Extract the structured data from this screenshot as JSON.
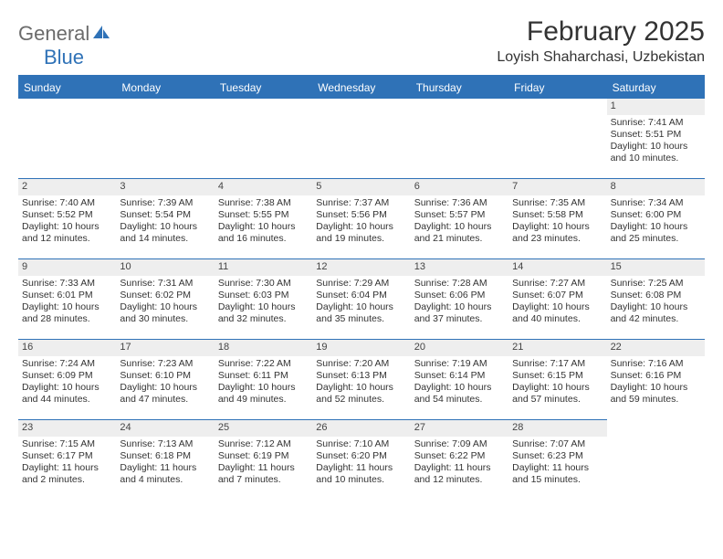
{
  "brand": {
    "text1": "General",
    "text2": "Blue",
    "icon_color": "#2f72b7"
  },
  "header": {
    "title": "February 2025",
    "subtitle": "Loyish Shaharchasi, Uzbekistan"
  },
  "colors": {
    "header_bar": "#2f72b7",
    "daynum_bg": "#eeeeee",
    "text": "#333333",
    "logo_gray": "#6b6b6b"
  },
  "day_names": [
    "Sunday",
    "Monday",
    "Tuesday",
    "Wednesday",
    "Thursday",
    "Friday",
    "Saturday"
  ],
  "leading_empty": 6,
  "days": [
    {
      "n": 1,
      "sunrise": "7:41 AM",
      "sunset": "5:51 PM",
      "daylight": "10 hours and 10 minutes."
    },
    {
      "n": 2,
      "sunrise": "7:40 AM",
      "sunset": "5:52 PM",
      "daylight": "10 hours and 12 minutes."
    },
    {
      "n": 3,
      "sunrise": "7:39 AM",
      "sunset": "5:54 PM",
      "daylight": "10 hours and 14 minutes."
    },
    {
      "n": 4,
      "sunrise": "7:38 AM",
      "sunset": "5:55 PM",
      "daylight": "10 hours and 16 minutes."
    },
    {
      "n": 5,
      "sunrise": "7:37 AM",
      "sunset": "5:56 PM",
      "daylight": "10 hours and 19 minutes."
    },
    {
      "n": 6,
      "sunrise": "7:36 AM",
      "sunset": "5:57 PM",
      "daylight": "10 hours and 21 minutes."
    },
    {
      "n": 7,
      "sunrise": "7:35 AM",
      "sunset": "5:58 PM",
      "daylight": "10 hours and 23 minutes."
    },
    {
      "n": 8,
      "sunrise": "7:34 AM",
      "sunset": "6:00 PM",
      "daylight": "10 hours and 25 minutes."
    },
    {
      "n": 9,
      "sunrise": "7:33 AM",
      "sunset": "6:01 PM",
      "daylight": "10 hours and 28 minutes."
    },
    {
      "n": 10,
      "sunrise": "7:31 AM",
      "sunset": "6:02 PM",
      "daylight": "10 hours and 30 minutes."
    },
    {
      "n": 11,
      "sunrise": "7:30 AM",
      "sunset": "6:03 PM",
      "daylight": "10 hours and 32 minutes."
    },
    {
      "n": 12,
      "sunrise": "7:29 AM",
      "sunset": "6:04 PM",
      "daylight": "10 hours and 35 minutes."
    },
    {
      "n": 13,
      "sunrise": "7:28 AM",
      "sunset": "6:06 PM",
      "daylight": "10 hours and 37 minutes."
    },
    {
      "n": 14,
      "sunrise": "7:27 AM",
      "sunset": "6:07 PM",
      "daylight": "10 hours and 40 minutes."
    },
    {
      "n": 15,
      "sunrise": "7:25 AM",
      "sunset": "6:08 PM",
      "daylight": "10 hours and 42 minutes."
    },
    {
      "n": 16,
      "sunrise": "7:24 AM",
      "sunset": "6:09 PM",
      "daylight": "10 hours and 44 minutes."
    },
    {
      "n": 17,
      "sunrise": "7:23 AM",
      "sunset": "6:10 PM",
      "daylight": "10 hours and 47 minutes."
    },
    {
      "n": 18,
      "sunrise": "7:22 AM",
      "sunset": "6:11 PM",
      "daylight": "10 hours and 49 minutes."
    },
    {
      "n": 19,
      "sunrise": "7:20 AM",
      "sunset": "6:13 PM",
      "daylight": "10 hours and 52 minutes."
    },
    {
      "n": 20,
      "sunrise": "7:19 AM",
      "sunset": "6:14 PM",
      "daylight": "10 hours and 54 minutes."
    },
    {
      "n": 21,
      "sunrise": "7:17 AM",
      "sunset": "6:15 PM",
      "daylight": "10 hours and 57 minutes."
    },
    {
      "n": 22,
      "sunrise": "7:16 AM",
      "sunset": "6:16 PM",
      "daylight": "10 hours and 59 minutes."
    },
    {
      "n": 23,
      "sunrise": "7:15 AM",
      "sunset": "6:17 PM",
      "daylight": "11 hours and 2 minutes."
    },
    {
      "n": 24,
      "sunrise": "7:13 AM",
      "sunset": "6:18 PM",
      "daylight": "11 hours and 4 minutes."
    },
    {
      "n": 25,
      "sunrise": "7:12 AM",
      "sunset": "6:19 PM",
      "daylight": "11 hours and 7 minutes."
    },
    {
      "n": 26,
      "sunrise": "7:10 AM",
      "sunset": "6:20 PM",
      "daylight": "11 hours and 10 minutes."
    },
    {
      "n": 27,
      "sunrise": "7:09 AM",
      "sunset": "6:22 PM",
      "daylight": "11 hours and 12 minutes."
    },
    {
      "n": 28,
      "sunrise": "7:07 AM",
      "sunset": "6:23 PM",
      "daylight": "11 hours and 15 minutes."
    }
  ],
  "labels": {
    "sunrise": "Sunrise: ",
    "sunset": "Sunset: ",
    "daylight": "Daylight: "
  }
}
